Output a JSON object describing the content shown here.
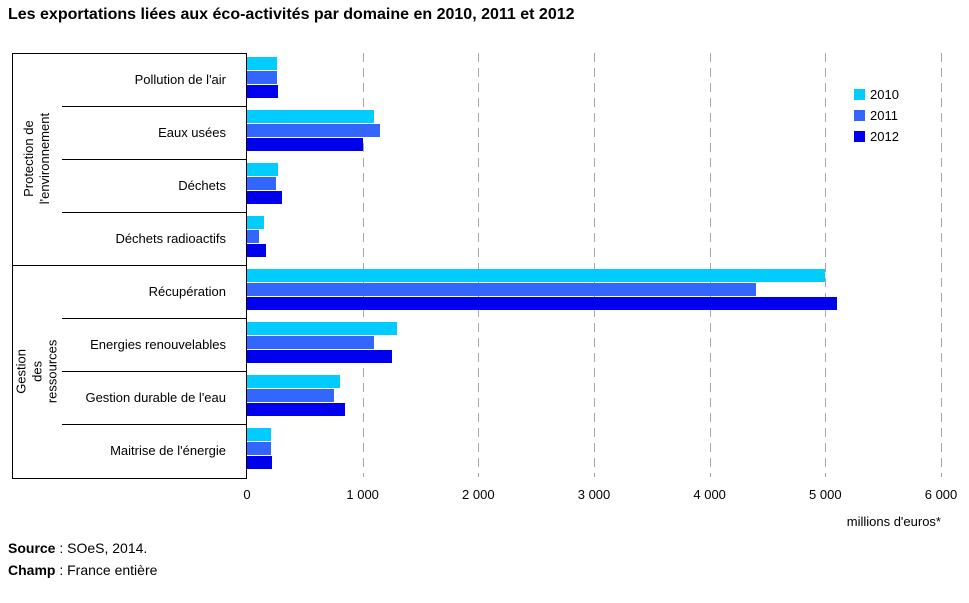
{
  "title": "Les exportations liées aux éco-activités par domaine en 2010, 2011 et 2012",
  "chart_data": {
    "type": "bar",
    "orientation": "horizontal",
    "title": "Les exportations liées aux éco-activités par domaine en 2010, 2011 et 2012",
    "unit_label": "millions d'euros*",
    "xlim": [
      0,
      6000
    ],
    "grid": true,
    "legend_position": "top-right",
    "x_ticks": [
      {
        "value": 0,
        "label": "0"
      },
      {
        "value": 1000,
        "label": "1 000"
      },
      {
        "value": 2000,
        "label": "2 000"
      },
      {
        "value": 3000,
        "label": "3 000"
      },
      {
        "value": 4000,
        "label": "4 000"
      },
      {
        "value": 5000,
        "label": "5 000"
      },
      {
        "value": 6000,
        "label": "6 000"
      }
    ],
    "groups": [
      {
        "label": "Protection de\nl'environnement",
        "categories": [
          "Pollution de l'air",
          "Eaux usées",
          "Déchets",
          "Déchets radioactifs"
        ]
      },
      {
        "label": "Gestion des\nressources",
        "categories": [
          "Récupération",
          "Energies renouvelables",
          "Gestion durable de l'eau",
          "Maitrise de l'énergie"
        ]
      }
    ],
    "categories": [
      "Pollution de l'air",
      "Eaux usées",
      "Déchets",
      "Déchets radioactifs",
      "Récupération",
      "Energies renouvelables",
      "Gestion durable de l'eau",
      "Maitrise de l'énergie"
    ],
    "series": [
      {
        "name": "2010",
        "color": "#00CCFF",
        "values": [
          260,
          1100,
          265,
          150,
          5000,
          1300,
          800,
          210
        ]
      },
      {
        "name": "2011",
        "color": "#3366FF",
        "values": [
          260,
          1150,
          255,
          100,
          4400,
          1100,
          750,
          210
        ]
      },
      {
        "name": "2012",
        "color": "#0000EE",
        "values": [
          270,
          1000,
          300,
          160,
          5100,
          1250,
          850,
          215
        ]
      }
    ]
  },
  "footer": {
    "source_label": "Source",
    "source_text": " : SOeS, 2014.",
    "champ_label": "Champ",
    "champ_text": " : France entière"
  }
}
